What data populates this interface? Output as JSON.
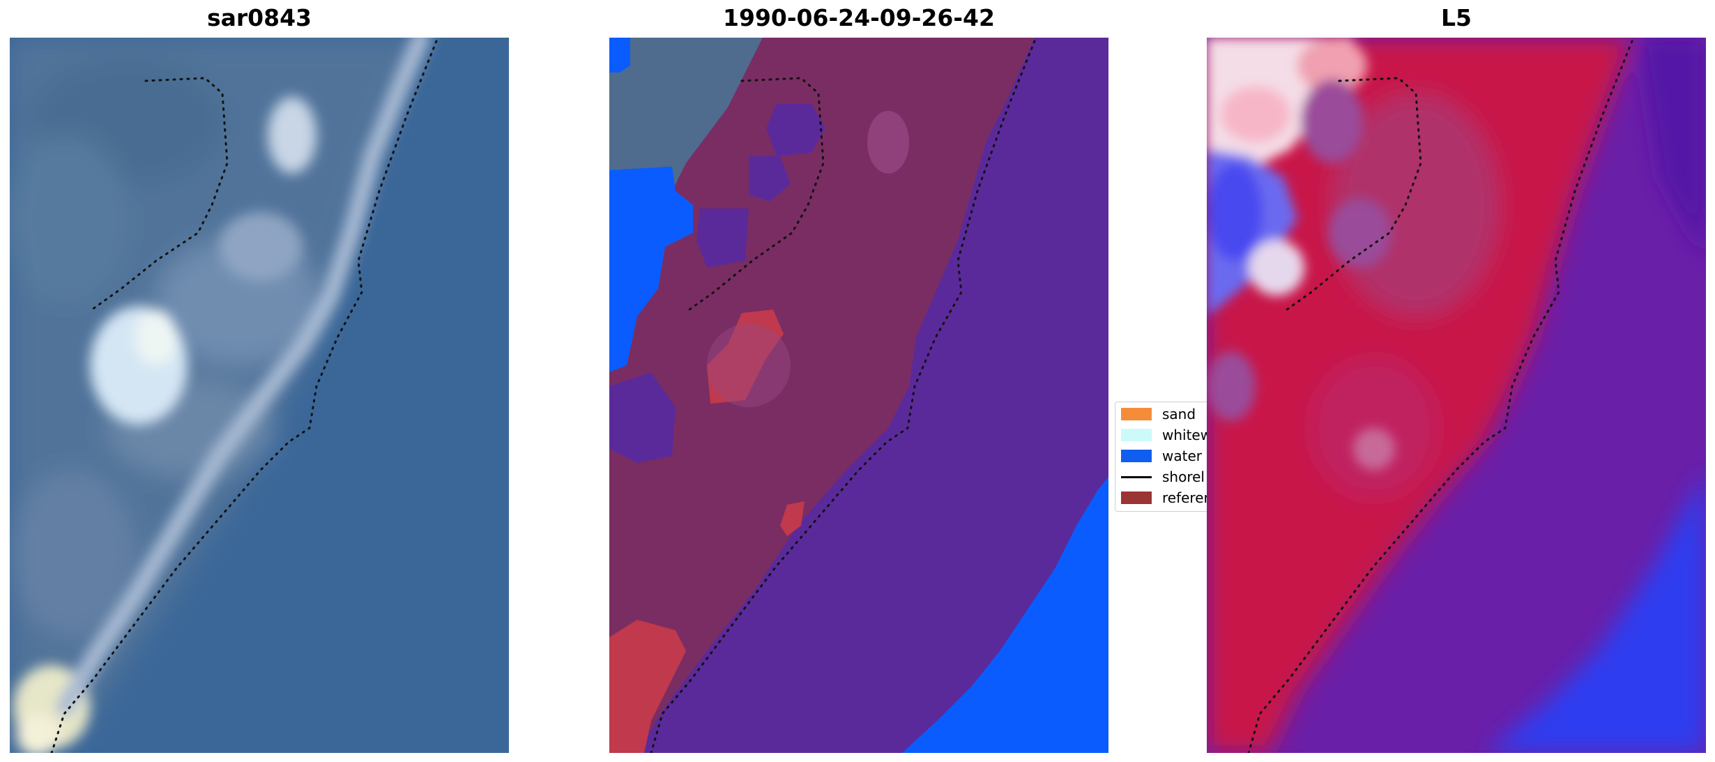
{
  "panels": [
    {
      "title": "sar0843"
    },
    {
      "title": "1990-06-24-09-26-42"
    },
    {
      "title": "L5"
    }
  ],
  "legend": {
    "items": [
      {
        "label": "sand",
        "color": "#f58c3a"
      },
      {
        "label": "whitew",
        "color": "#ccfafa"
      },
      {
        "label": "water",
        "color": "#0f5ef0"
      },
      {
        "label": "shorel",
        "color": "#000000"
      },
      {
        "label": "referer",
        "color": "#9b3434"
      }
    ]
  },
  "colors": {
    "sea_rgb": "#3a6598",
    "land_class": "#7a2d63",
    "water_class": "#5b2a9a",
    "water_blue": "#0a5cff",
    "index_red": "#c8184a",
    "index_purple": "#6a1fa8"
  }
}
